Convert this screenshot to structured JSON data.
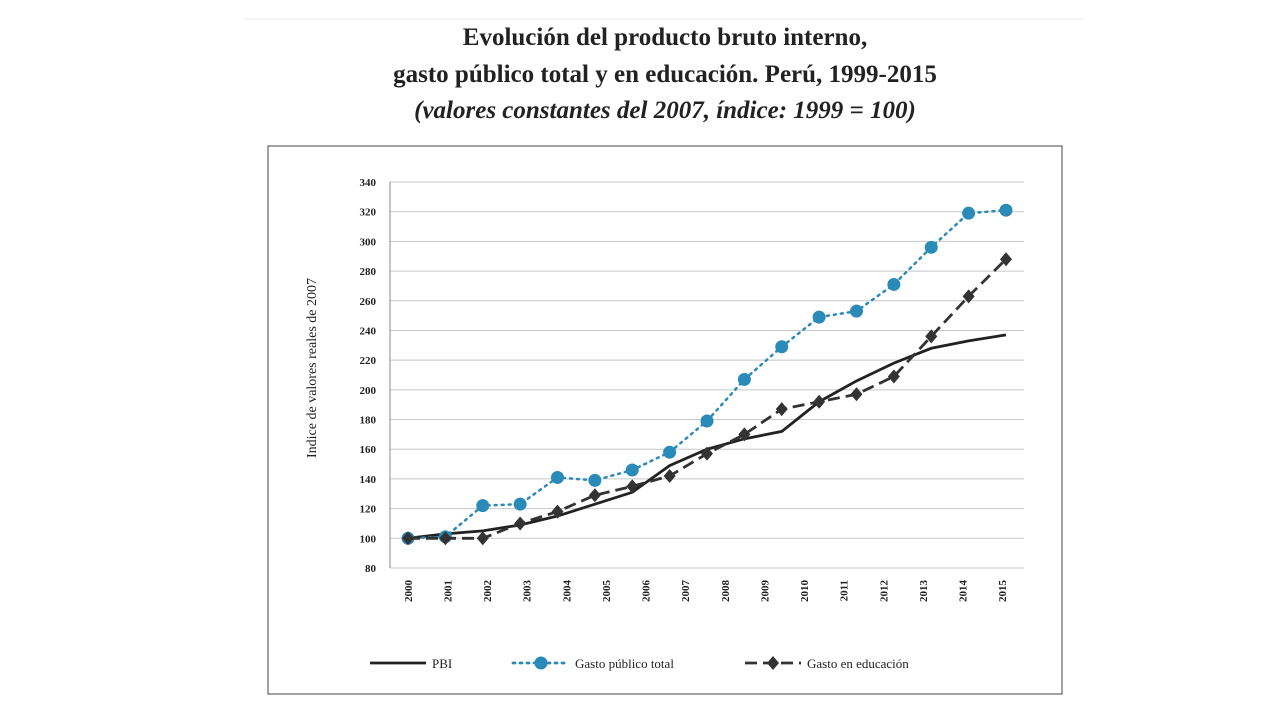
{
  "chart_data": {
    "type": "line",
    "title": [
      "Evolución del producto bruto interno,",
      "gasto público total y en educación. Perú, 1999-2015"
    ],
    "subtitle": "(valores constantes del 2007, índice: 1999 = 100)",
    "y_label": "Indice de valores reales de 2007",
    "categories": [
      "2000",
      "2001",
      "2002",
      "2003",
      "2004",
      "2005",
      "2006",
      "2007",
      "2008",
      "2009",
      "2010",
      "2011",
      "2012",
      "2013",
      "2014",
      "2015",
      null
    ],
    "series": [
      {
        "name": "PBI",
        "color": "#222222",
        "style": "solid",
        "marker": "none",
        "values": [
          100,
          103,
          105,
          109,
          115,
          123,
          131,
          149,
          160,
          167,
          172,
          192,
          206,
          218,
          228,
          233,
          237
        ]
      },
      {
        "name": "Gasto público total",
        "color": "#2a8ab8",
        "style": "dotted",
        "marker": "circle",
        "values": [
          100,
          101,
          122,
          123,
          141,
          139,
          146,
          158,
          179,
          207,
          229,
          249,
          253,
          271,
          296,
          319,
          321
        ]
      },
      {
        "name": "Gasto en educación",
        "color": "#333333",
        "style": "dashed",
        "marker": "diamond",
        "values": [
          100,
          100,
          100,
          110,
          118,
          129,
          135,
          142,
          157,
          170,
          187,
          192,
          197,
          209,
          236,
          263,
          288
        ]
      }
    ],
    "ylim": [
      80,
      340
    ],
    "yticks": [
      80,
      100,
      120,
      140,
      160,
      180,
      200,
      220,
      240,
      260,
      280,
      300,
      320,
      340
    ],
    "grid": true
  }
}
